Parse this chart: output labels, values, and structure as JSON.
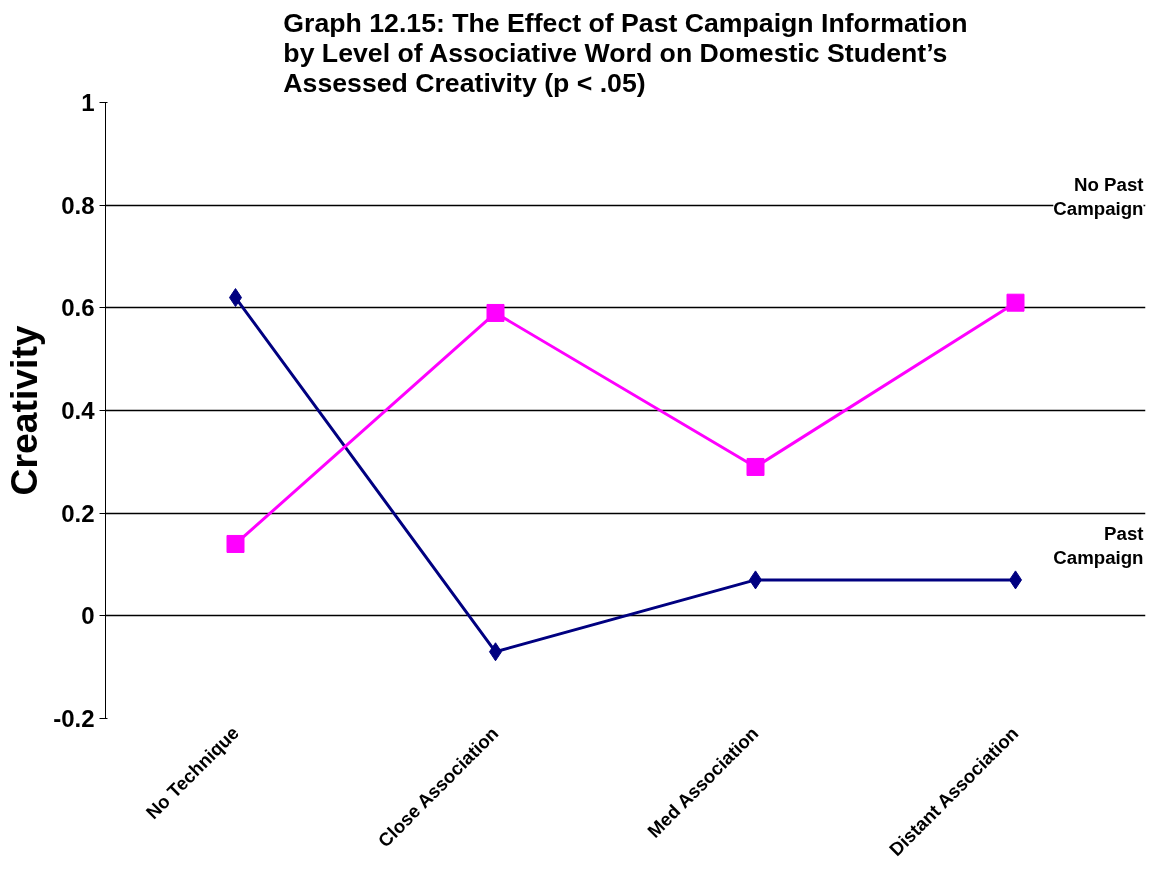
{
  "chart_data": {
    "type": "line",
    "title": "Graph 12.15: The Effect of Past Campaign Information by Level of Associative Word on Domestic Student’s Assessed Creativity (p < .05)",
    "ylabel": "Creativity",
    "categories": [
      "No Technique",
      "Close Association",
      "Med Association",
      "Distant Association"
    ],
    "series": [
      {
        "name": "Past Campaign",
        "color": "#000080",
        "marker": "diamond",
        "values": [
          0.62,
          -0.07,
          0.07,
          0.07
        ]
      },
      {
        "name": "No Past Campaign",
        "color": "#ff00ff",
        "marker": "square",
        "values": [
          0.14,
          0.59,
          0.29,
          0.61
        ]
      }
    ],
    "ylim": [
      -0.2,
      1
    ],
    "yticks": [
      -0.2,
      0,
      0.2,
      0.4,
      0.6,
      0.8,
      1
    ],
    "grid": "y"
  }
}
